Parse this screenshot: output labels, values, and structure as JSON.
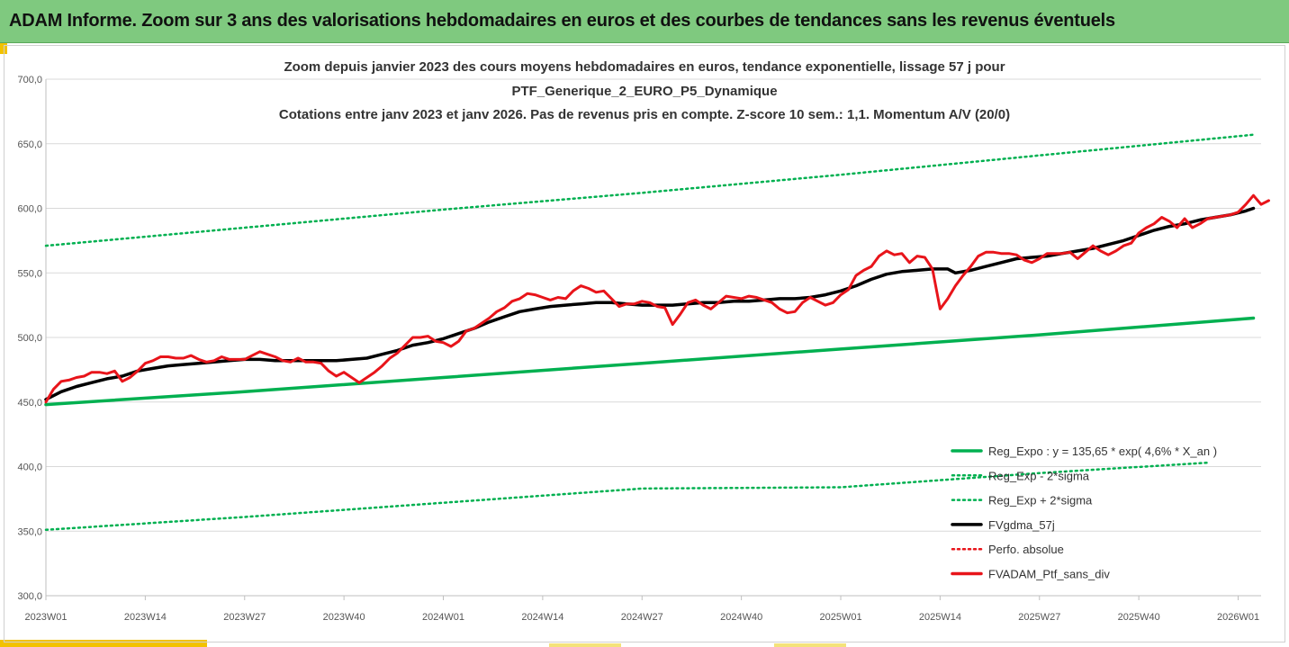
{
  "banner": {
    "title": "ADAM Informe. Zoom sur 3 ans des valorisations hebdomadaires en euros et des courbes de tendances sans les revenus éventuels"
  },
  "colors": {
    "banner_bg": "#7fc97f",
    "accent_yellow": "#f2c200",
    "green_series": "#00b050",
    "black_series": "#000000",
    "red_series": "#e8141a"
  },
  "chart_data": {
    "type": "line",
    "title_lines": [
      "Zoom depuis janvier 2023 des cours moyens hebdomadaires  en euros, tendance exponentielle, lissage 57 j pour",
      "PTF_Generique_2_EURO_P5_Dynamique",
      "Cotations entre janv 2023 et janv 2026. Pas de revenus pris en compte. Z-score 10 sem.: 1,1. Momentum A/V (20/0)"
    ],
    "ylim": [
      300,
      700
    ],
    "y_ticks": [
      "300,0",
      "350,0",
      "400,0",
      "450,0",
      "500,0",
      "550,0",
      "600,0",
      "650,0",
      "700,0"
    ],
    "x_range_weeks": [
      0,
      158
    ],
    "x_ticks": [
      {
        "label": "2023W01",
        "week": 0
      },
      {
        "label": "2023W14",
        "week": 13
      },
      {
        "label": "2023W27",
        "week": 26
      },
      {
        "label": "2023W40",
        "week": 39
      },
      {
        "label": "2024W01",
        "week": 52
      },
      {
        "label": "2024W14",
        "week": 65
      },
      {
        "label": "2024W27",
        "week": 78
      },
      {
        "label": "2024W40",
        "week": 91
      },
      {
        "label": "2025W01",
        "week": 104
      },
      {
        "label": "2025W14",
        "week": 117
      },
      {
        "label": "2025W27",
        "week": 130
      },
      {
        "label": "2025W40",
        "week": 143
      },
      {
        "label": "2026W01",
        "week": 156
      }
    ],
    "grid": "horizontal",
    "legend_position": "bottom-right",
    "series": [
      {
        "name": "Reg_Expo : y = 135,65 * exp( 4,6% *  X_an )",
        "style": "solid",
        "color": "#00b050",
        "points": [
          [
            0,
            448
          ],
          [
            26,
            458
          ],
          [
            52,
            469
          ],
          [
            78,
            480
          ],
          [
            104,
            491
          ],
          [
            130,
            502
          ],
          [
            158,
            515
          ]
        ]
      },
      {
        "name": "Reg_Exp - 2*sigma",
        "style": "dotted",
        "color": "#00b050",
        "points": [
          [
            0,
            351
          ],
          [
            26,
            361
          ],
          [
            52,
            372
          ],
          [
            78,
            383
          ],
          [
            104,
            384
          ],
          [
            130,
            395
          ],
          [
            152,
            403
          ]
        ]
      },
      {
        "name": "Reg_Exp + 2*sigma",
        "style": "dotted",
        "color": "#00b050",
        "points": [
          [
            0,
            571
          ],
          [
            26,
            585
          ],
          [
            52,
            599
          ],
          [
            78,
            612
          ],
          [
            104,
            626
          ],
          [
            130,
            641
          ],
          [
            158,
            657
          ]
        ]
      },
      {
        "name": "FVgdma_57j",
        "style": "solid",
        "color": "#000000",
        "points": [
          [
            0,
            452
          ],
          [
            2,
            458
          ],
          [
            4,
            462
          ],
          [
            6,
            465
          ],
          [
            8,
            468
          ],
          [
            10,
            470
          ],
          [
            12,
            474
          ],
          [
            14,
            476
          ],
          [
            16,
            478
          ],
          [
            18,
            479
          ],
          [
            20,
            480
          ],
          [
            22,
            481
          ],
          [
            24,
            482
          ],
          [
            26,
            483
          ],
          [
            28,
            483
          ],
          [
            30,
            482
          ],
          [
            32,
            482
          ],
          [
            34,
            482
          ],
          [
            36,
            482
          ],
          [
            38,
            482
          ],
          [
            40,
            483
          ],
          [
            42,
            484
          ],
          [
            44,
            487
          ],
          [
            46,
            490
          ],
          [
            48,
            494
          ],
          [
            50,
            496
          ],
          [
            52,
            499
          ],
          [
            54,
            503
          ],
          [
            56,
            507
          ],
          [
            58,
            512
          ],
          [
            60,
            516
          ],
          [
            62,
            520
          ],
          [
            64,
            522
          ],
          [
            66,
            524
          ],
          [
            68,
            525
          ],
          [
            70,
            526
          ],
          [
            72,
            527
          ],
          [
            74,
            527
          ],
          [
            76,
            526
          ],
          [
            78,
            525
          ],
          [
            80,
            525
          ],
          [
            82,
            525
          ],
          [
            84,
            526
          ],
          [
            86,
            527
          ],
          [
            88,
            527
          ],
          [
            90,
            528
          ],
          [
            92,
            528
          ],
          [
            94,
            529
          ],
          [
            96,
            530
          ],
          [
            98,
            530
          ],
          [
            100,
            531
          ],
          [
            102,
            533
          ],
          [
            104,
            536
          ],
          [
            106,
            540
          ],
          [
            108,
            545
          ],
          [
            110,
            549
          ],
          [
            112,
            551
          ],
          [
            114,
            552
          ],
          [
            116,
            553
          ],
          [
            118,
            553
          ],
          [
            119,
            550
          ],
          [
            121,
            552
          ],
          [
            123,
            555
          ],
          [
            125,
            558
          ],
          [
            127,
            561
          ],
          [
            129,
            562
          ],
          [
            131,
            563
          ],
          [
            133,
            565
          ],
          [
            135,
            567
          ],
          [
            137,
            569
          ],
          [
            139,
            572
          ],
          [
            141,
            575
          ],
          [
            143,
            579
          ],
          [
            145,
            583
          ],
          [
            147,
            586
          ],
          [
            149,
            588
          ],
          [
            151,
            591
          ],
          [
            153,
            593
          ],
          [
            155,
            595
          ],
          [
            157,
            598
          ],
          [
            158,
            600
          ]
        ]
      },
      {
        "name": "Perfo. absolue",
        "style": "dotted",
        "color": "#e8141a",
        "points": []
      },
      {
        "name": "FVADAM_Ptf_sans_div",
        "style": "solid",
        "color": "#e8141a",
        "points": [
          [
            0,
            450
          ],
          [
            1,
            460
          ],
          [
            2,
            466
          ],
          [
            3,
            467
          ],
          [
            4,
            469
          ],
          [
            5,
            470
          ],
          [
            6,
            473
          ],
          [
            7,
            473
          ],
          [
            8,
            472
          ],
          [
            9,
            474
          ],
          [
            10,
            466
          ],
          [
            11,
            469
          ],
          [
            12,
            474
          ],
          [
            13,
            480
          ],
          [
            14,
            482
          ],
          [
            15,
            485
          ],
          [
            16,
            485
          ],
          [
            17,
            484
          ],
          [
            18,
            484
          ],
          [
            19,
            486
          ],
          [
            20,
            483
          ],
          [
            21,
            481
          ],
          [
            22,
            482
          ],
          [
            23,
            485
          ],
          [
            24,
            483
          ],
          [
            25,
            483
          ],
          [
            26,
            483
          ],
          [
            27,
            486
          ],
          [
            28,
            489
          ],
          [
            29,
            487
          ],
          [
            30,
            485
          ],
          [
            31,
            482
          ],
          [
            32,
            481
          ],
          [
            33,
            484
          ],
          [
            34,
            481
          ],
          [
            35,
            481
          ],
          [
            36,
            480
          ],
          [
            37,
            474
          ],
          [
            38,
            470
          ],
          [
            39,
            473
          ],
          [
            40,
            469
          ],
          [
            41,
            465
          ],
          [
            42,
            469
          ],
          [
            43,
            473
          ],
          [
            44,
            478
          ],
          [
            45,
            484
          ],
          [
            46,
            488
          ],
          [
            47,
            494
          ],
          [
            48,
            500
          ],
          [
            49,
            500
          ],
          [
            50,
            501
          ],
          [
            51,
            497
          ],
          [
            52,
            496
          ],
          [
            53,
            493
          ],
          [
            54,
            497
          ],
          [
            55,
            505
          ],
          [
            56,
            507
          ],
          [
            57,
            511
          ],
          [
            58,
            515
          ],
          [
            59,
            520
          ],
          [
            60,
            523
          ],
          [
            61,
            528
          ],
          [
            62,
            530
          ],
          [
            63,
            534
          ],
          [
            64,
            533
          ],
          [
            65,
            531
          ],
          [
            66,
            529
          ],
          [
            67,
            531
          ],
          [
            68,
            530
          ],
          [
            69,
            536
          ],
          [
            70,
            540
          ],
          [
            71,
            538
          ],
          [
            72,
            535
          ],
          [
            73,
            536
          ],
          [
            74,
            530
          ],
          [
            75,
            524
          ],
          [
            76,
            526
          ],
          [
            77,
            526
          ],
          [
            78,
            528
          ],
          [
            79,
            527
          ],
          [
            80,
            524
          ],
          [
            81,
            523
          ],
          [
            82,
            510
          ],
          [
            83,
            518
          ],
          [
            84,
            527
          ],
          [
            85,
            529
          ],
          [
            86,
            525
          ],
          [
            87,
            522
          ],
          [
            88,
            527
          ],
          [
            89,
            532
          ],
          [
            90,
            531
          ],
          [
            91,
            530
          ],
          [
            92,
            532
          ],
          [
            93,
            531
          ],
          [
            94,
            529
          ],
          [
            95,
            527
          ],
          [
            96,
            522
          ],
          [
            97,
            519
          ],
          [
            98,
            520
          ],
          [
            99,
            527
          ],
          [
            100,
            531
          ],
          [
            101,
            528
          ],
          [
            102,
            525
          ],
          [
            103,
            527
          ],
          [
            104,
            533
          ],
          [
            105,
            537
          ],
          [
            106,
            548
          ],
          [
            107,
            552
          ],
          [
            108,
            555
          ],
          [
            109,
            563
          ],
          [
            110,
            567
          ],
          [
            111,
            564
          ],
          [
            112,
            565
          ],
          [
            113,
            558
          ],
          [
            114,
            563
          ],
          [
            115,
            562
          ],
          [
            116,
            553
          ],
          [
            117,
            522
          ],
          [
            118,
            530
          ],
          [
            119,
            540
          ],
          [
            120,
            548
          ],
          [
            121,
            555
          ],
          [
            122,
            563
          ],
          [
            123,
            566
          ],
          [
            124,
            566
          ],
          [
            125,
            565
          ],
          [
            126,
            565
          ],
          [
            127,
            564
          ],
          [
            128,
            560
          ],
          [
            129,
            558
          ],
          [
            130,
            561
          ],
          [
            131,
            565
          ],
          [
            132,
            565
          ],
          [
            133,
            565
          ],
          [
            134,
            566
          ],
          [
            135,
            561
          ],
          [
            136,
            566
          ],
          [
            137,
            571
          ],
          [
            138,
            567
          ],
          [
            139,
            564
          ],
          [
            140,
            567
          ],
          [
            141,
            571
          ],
          [
            142,
            573
          ],
          [
            143,
            581
          ],
          [
            144,
            585
          ],
          [
            145,
            588
          ],
          [
            146,
            593
          ],
          [
            147,
            590
          ],
          [
            148,
            585
          ],
          [
            149,
            592
          ],
          [
            150,
            585
          ],
          [
            151,
            588
          ],
          [
            152,
            592
          ],
          [
            153,
            593
          ],
          [
            154,
            594
          ],
          [
            155,
            595
          ],
          [
            156,
            597
          ],
          [
            157,
            603
          ],
          [
            158,
            610
          ],
          [
            159,
            603
          ],
          [
            160,
            606
          ]
        ]
      }
    ]
  }
}
